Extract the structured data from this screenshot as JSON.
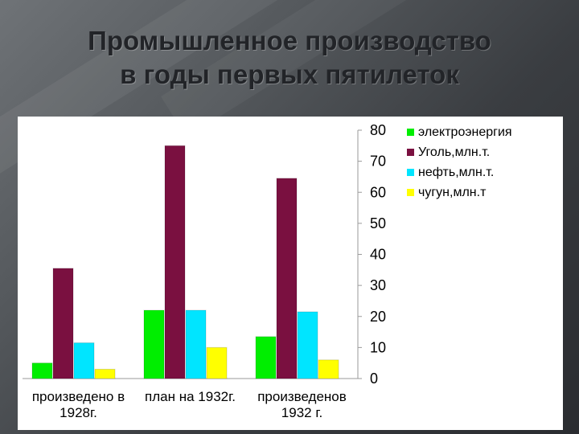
{
  "slide": {
    "title_line1": "Промышленное производство",
    "title_line2": "в годы первых пятилеток"
  },
  "chart_data": {
    "type": "bar",
    "title": "",
    "xlabel": "",
    "ylabel": "",
    "categories": [
      [
        "произведено в",
        "1928г."
      ],
      [
        "план на 1932г."
      ],
      [
        "произведенов",
        "1932 г."
      ]
    ],
    "series": [
      {
        "name": "электроэнергия",
        "color": "#00ee00",
        "values": [
          5,
          22,
          13.5
        ]
      },
      {
        "name": "Уголь,млн.т.",
        "color": "#7a1040",
        "values": [
          35.5,
          75,
          64.5
        ]
      },
      {
        "name": "нефть,млн.т.",
        "color": "#00e5ff",
        "values": [
          11.5,
          22,
          21.5
        ]
      },
      {
        "name": "чугун,млн.т",
        "color": "#ffff00",
        "values": [
          3,
          10,
          6
        ]
      }
    ],
    "ylim": [
      0,
      80
    ],
    "yticks": [
      "0",
      "10",
      "20",
      "30",
      "40",
      "50",
      "60",
      "70",
      "80"
    ],
    "y_axis_side": "right",
    "grid": false,
    "legend_position": "right"
  }
}
